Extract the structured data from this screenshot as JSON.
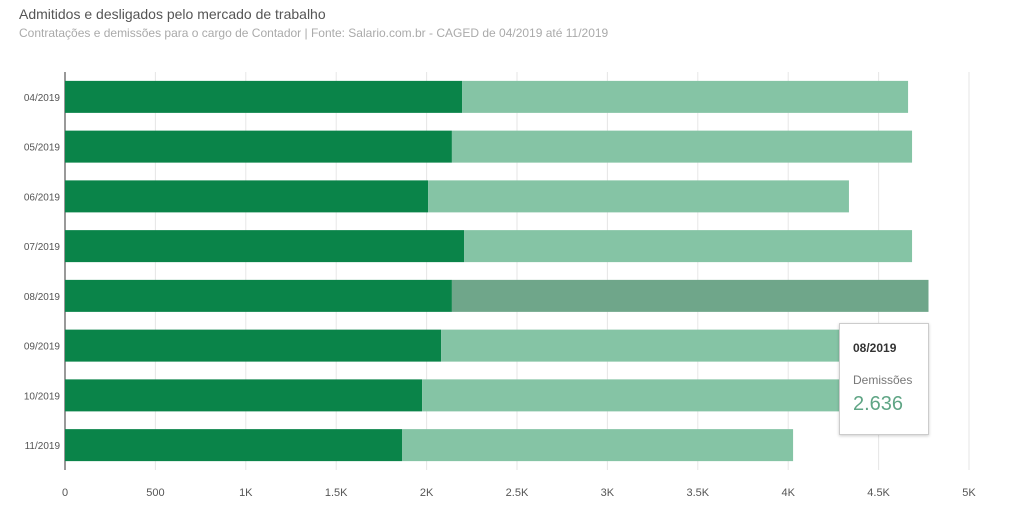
{
  "chart_data": {
    "type": "bar",
    "orientation": "horizontal",
    "stacked": true,
    "title": "Admitidos e desligados pelo mercado de trabalho",
    "subtitle": "Contratações e demissões para o cargo de Contador | Fonte: Salario.com.br - CAGED de 04/2019 até 11/2019",
    "categories": [
      "04/2019",
      "05/2019",
      "06/2019",
      "07/2019",
      "08/2019",
      "09/2019",
      "10/2019",
      "11/2019"
    ],
    "series": [
      {
        "values": [
          2196,
          2140,
          2008,
          2207,
          2140,
          2080,
          1975,
          1864
        ],
        "color": "#0a8449"
      },
      {
        "name": "Demissões",
        "values": [
          2467,
          2545,
          2328,
          2478,
          2636,
          2570,
          2625,
          2163
        ],
        "color": "#85c4a5"
      }
    ],
    "xlim": [
      0,
      5000
    ],
    "xticks": [
      0,
      500,
      1000,
      1500,
      2000,
      2500,
      3000,
      3500,
      4000,
      4500,
      5000
    ],
    "xtick_labels": [
      "0",
      "500",
      "1K",
      "1.5K",
      "2K",
      "2.5K",
      "3K",
      "3.5K",
      "4K",
      "4.5K",
      "5K"
    ],
    "grid": true,
    "legend": "none",
    "highlight_color": "#6fa68a",
    "tooltip": {
      "category": "08/2019",
      "label": "Demissões",
      "value": "2.636"
    }
  }
}
